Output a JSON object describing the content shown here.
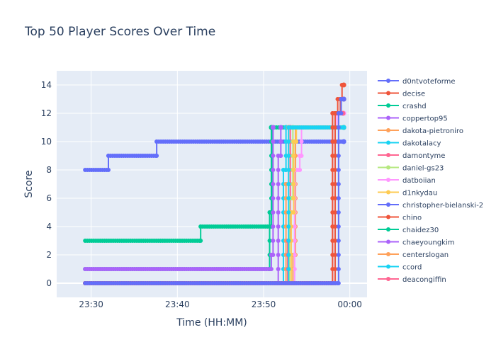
{
  "chart_data": {
    "type": "line",
    "title": "Top 50 Player Scores Over Time",
    "xlabel": "Time (HH:MM)",
    "ylabel": "Score",
    "xlim": [
      "23:26",
      "00:02"
    ],
    "ylim": [
      -1,
      15
    ],
    "x_ticks": [
      "23:30",
      "23:40",
      "23:50",
      "00:00"
    ],
    "y_ticks": [
      0,
      2,
      4,
      6,
      8,
      10,
      12,
      14
    ],
    "line_shape": "step",
    "grid": true,
    "legend_placement": "right",
    "legend_entries": [
      {
        "name": "d0ntvoteforme",
        "color": "#636efa"
      },
      {
        "name": "decise",
        "color": "#EF553B"
      },
      {
        "name": "crashd",
        "color": "#00cc96"
      },
      {
        "name": "coppertop95",
        "color": "#ab63fa"
      },
      {
        "name": "dakota-pietroniro",
        "color": "#FFA15A"
      },
      {
        "name": "dakotalacy",
        "color": "#19d3f3"
      },
      {
        "name": "damontyme",
        "color": "#FF6692"
      },
      {
        "name": "daniel-gs23",
        "color": "#B6E880"
      },
      {
        "name": "datboiian",
        "color": "#FF97FF"
      },
      {
        "name": "d1nkydau",
        "color": "#FECB52"
      },
      {
        "name": "christopher-bielanski-2",
        "color": "#636efa"
      },
      {
        "name": "chino",
        "color": "#EF553B"
      },
      {
        "name": "chaidez30",
        "color": "#00cc96"
      },
      {
        "name": "chaeyoungkim",
        "color": "#ab63fa"
      },
      {
        "name": "centerslogan",
        "color": "#FFA15A"
      },
      {
        "name": "ccord",
        "color": "#19d3f3"
      },
      {
        "name": "deacongiffin",
        "color": "#FF6692"
      }
    ],
    "series": [
      {
        "name": "christopher-bielanski-2",
        "color": "#636efa",
        "points": [
          [
            "23:29.3",
            8
          ],
          [
            "23:32.0",
            8
          ],
          [
            "23:32.0",
            9
          ],
          [
            "23:37.6",
            9
          ],
          [
            "23:37.6",
            10
          ],
          [
            "23:59.3",
            10
          ]
        ]
      },
      {
        "name": "chaidez30",
        "color": "#00cc96",
        "points": [
          [
            "23:29.3",
            3
          ],
          [
            "23:42.7",
            3
          ],
          [
            "23:42.7",
            4
          ],
          [
            "23:50.9",
            4
          ],
          [
            "23:50.9",
            11
          ]
        ]
      },
      {
        "name": "crashd",
        "color": "#00cc96",
        "points": [
          [
            "23:29.3",
            1
          ],
          [
            "23:50.7",
            1
          ],
          [
            "23:50.7",
            5
          ],
          [
            "23:51.0",
            5
          ],
          [
            "23:51.0",
            11
          ],
          [
            "23:59.3",
            11
          ]
        ]
      },
      {
        "name": "chaeyoungkim",
        "color": "#ab63fa",
        "points": [
          [
            "23:29.3",
            1
          ],
          [
            "23:50.9",
            1
          ],
          [
            "23:50.9",
            2
          ],
          [
            "23:51.1",
            2
          ],
          [
            "23:51.1",
            11
          ]
        ]
      },
      {
        "name": "coppertop95",
        "color": "#ab63fa",
        "points": [
          [
            "23:51.5",
            0
          ],
          [
            "23:51.7",
            0
          ],
          [
            "23:51.7",
            9
          ],
          [
            "23:52.0",
            9
          ],
          [
            "23:52.0",
            11
          ]
        ]
      },
      {
        "name": "dakotalacy",
        "color": "#19d3f3",
        "points": [
          [
            "23:52.0",
            0
          ],
          [
            "23:52.3",
            0
          ],
          [
            "23:52.3",
            8
          ],
          [
            "23:52.6",
            8
          ],
          [
            "23:52.6",
            11
          ]
        ]
      },
      {
        "name": "centerslogan",
        "color": "#FFA15A",
        "points": [
          [
            "23:52.3",
            0
          ],
          [
            "23:52.6",
            0
          ],
          [
            "23:52.6",
            7
          ],
          [
            "23:52.9",
            7
          ],
          [
            "23:52.9",
            11
          ]
        ]
      },
      {
        "name": "damontyme",
        "color": "#FF6692",
        "points": [
          [
            "23:52.4",
            0
          ],
          [
            "23:52.8",
            0
          ],
          [
            "23:52.8",
            3
          ],
          [
            "23:53.1",
            3
          ],
          [
            "23:53.1",
            11
          ]
        ]
      },
      {
        "name": "daniel-gs23",
        "color": "#B6E880",
        "points": [
          [
            "23:52.6",
            0
          ],
          [
            "23:53.0",
            0
          ],
          [
            "23:53.0",
            6
          ],
          [
            "23:53.4",
            6
          ],
          [
            "23:53.4",
            11
          ]
        ]
      },
      {
        "name": "dakota-pietroniro",
        "color": "#FFA15A",
        "points": [
          [
            "23:52.5",
            0
          ],
          [
            "23:53.4",
            0
          ],
          [
            "23:53.4",
            2
          ],
          [
            "23:53.7",
            2
          ],
          [
            "23:53.7",
            11
          ],
          [
            "23:59.3",
            11
          ]
        ]
      },
      {
        "name": "datboiian",
        "color": "#FF97FF",
        "points": [
          [
            "23:53.2",
            0
          ],
          [
            "23:53.6",
            0
          ],
          [
            "23:53.6",
            8
          ],
          [
            "23:54.2",
            8
          ],
          [
            "23:54.2",
            9
          ],
          [
            "23:54.4",
            9
          ],
          [
            "23:54.4",
            11
          ],
          [
            "23:58.5",
            11
          ],
          [
            "23:58.5",
            12
          ],
          [
            "23:59.3",
            12
          ]
        ]
      },
      {
        "name": "d1nkydau",
        "color": "#FECB52",
        "points": [
          [
            "23:29.3",
            0
          ],
          [
            "23:53.2",
            0
          ],
          [
            "23:53.2",
            5
          ],
          [
            "23:53.5",
            5
          ],
          [
            "23:53.5",
            10
          ],
          [
            "23:53.8",
            10
          ],
          [
            "23:53.8",
            11
          ],
          [
            "23:59.3",
            11
          ]
        ]
      },
      {
        "name": "deacongiffin",
        "color": "#FF6692",
        "points": [
          [
            "23:29.3",
            0
          ],
          [
            "23:58.0",
            0
          ],
          [
            "23:58.0",
            12
          ],
          [
            "23:59.2",
            12
          ]
        ]
      },
      {
        "name": "ccord",
        "color": "#19d3f3",
        "points": [
          [
            "23:52.5",
            0
          ],
          [
            "23:52.9",
            0
          ],
          [
            "23:52.9",
            11
          ],
          [
            "23:59.3",
            11
          ]
        ]
      },
      {
        "name": "decise",
        "color": "#EF553B",
        "points": [
          [
            "23:29.3",
            0
          ],
          [
            "23:58.0",
            0
          ],
          [
            "23:58.0",
            12
          ],
          [
            "23:58.6",
            12
          ],
          [
            "23:58.6",
            13
          ],
          [
            "23:59.1",
            13
          ],
          [
            "23:59.1",
            14
          ],
          [
            "23:59.3",
            14
          ]
        ]
      },
      {
        "name": "chino",
        "color": "#EF553B",
        "points": [
          [
            "23:29.3",
            0
          ],
          [
            "23:58.3",
            0
          ],
          [
            "23:58.3",
            12
          ],
          [
            "23:58.9",
            12
          ],
          [
            "23:58.9",
            13
          ],
          [
            "23:59.3",
            13
          ]
        ]
      },
      {
        "name": "d0ntvoteforme",
        "color": "#636efa",
        "points": [
          [
            "23:29.3",
            0
          ],
          [
            "23:58.7",
            0
          ],
          [
            "23:58.7",
            12
          ],
          [
            "23:59.0",
            12
          ],
          [
            "23:59.0",
            13
          ],
          [
            "23:59.3",
            13
          ]
        ]
      }
    ]
  }
}
